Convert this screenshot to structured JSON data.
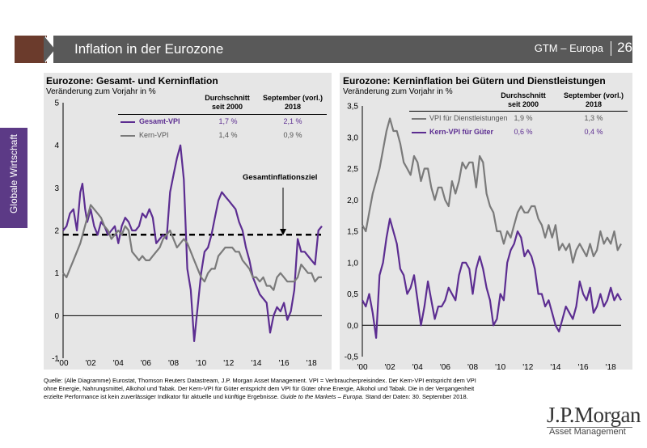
{
  "header": {
    "title": "Inflation in der Eurozone",
    "series": "GTM – Europa",
    "page": "26"
  },
  "sidebar": {
    "label": "Globale Wirtschaft"
  },
  "left_panel": {
    "title": "Eurozone: Gesamt- und Kerninflation",
    "subtitle": "Veränderung zum Vorjahr in %",
    "col_avg": [
      "Durchschnitt",
      "seit 2000"
    ],
    "col_sep": [
      "September (vorl.)",
      "2018"
    ],
    "rows": [
      {
        "label": "Gesamt-VPI",
        "avg": "1,7 %",
        "sep": "2,1 %"
      },
      {
        "label": "Kern-VPI",
        "avg": "1,4 %",
        "sep": "0,9 %"
      }
    ],
    "annotation": "Gesamtinflationsziel"
  },
  "right_panel": {
    "title": "Eurozone: Kerninflation bei Gütern und Dienstleistungen",
    "subtitle": "Veränderung zum Vorjahr in %",
    "col_avg": [
      "Durchschnitt",
      "seit 2000"
    ],
    "col_sep": [
      "September (vorl.)",
      "2018"
    ],
    "rows": [
      {
        "label": "VPI für Dienstleistungen",
        "avg": "1,9 %",
        "sep": "1,3 %"
      },
      {
        "label": "Kern-VPI für Güter",
        "avg": "0,6 %",
        "sep": "0,4 %"
      }
    ]
  },
  "source": {
    "line1": "Quelle: (Alle Diagramme) Eurostat, Thomson Reuters Datastream, J.P. Morgan Asset Management. VPI = Verbraucherpreisindex. Der Kern-VPI entspricht dem VPI",
    "line2": "ohne Energie, Nahrungsmittel, Alkohol und Tabak. Der Kern-VPI für Güter entspricht dem VPI für Güter ohne Energie, Alkohol und Tabak. Die in der Vergangenheit",
    "line3_a": "erzielte Performance ist kein zuverlässiger Indikator für aktuelle und künftige Ergebnisse.",
    "line3_b": "Guide to the Markets – Europa.",
    "line3_c": "Stand der Daten: 30. September 2018."
  },
  "logo": {
    "line1": "J.P.Morgan",
    "line2": "Asset Management"
  },
  "colors": {
    "purple": "#5c2d91",
    "grey": "#7a7a7a",
    "header": "#595959",
    "accent": "#6b3b2c"
  },
  "chart_data": [
    {
      "type": "line",
      "title": "Eurozone: Gesamt- und Kerninflation",
      "ylabel": "Veränderung zum Vorjahr in %",
      "ylim": [
        -1,
        5
      ],
      "xlim": [
        2000,
        2018.75
      ],
      "yticks": [
        "-1",
        "0",
        "1",
        "2",
        "3",
        "4",
        "5"
      ],
      "xticks": [
        "'00",
        "'02",
        "'04",
        "'06",
        "'08",
        "'10",
        "'12",
        "'14",
        "'16",
        "'18"
      ],
      "reference_line": {
        "y": 1.9,
        "label": "Gesamtinflationsziel"
      },
      "series": [
        {
          "name": "Gesamt-VPI",
          "color": "#5c2d91",
          "x": [
            2000,
            2000.25,
            2000.5,
            2000.75,
            2001,
            2001.25,
            2001.4,
            2001.6,
            2001.75,
            2002,
            2002.25,
            2002.5,
            2002.75,
            2003,
            2003.25,
            2003.5,
            2003.75,
            2004,
            2004.25,
            2004.5,
            2004.75,
            2005,
            2005.25,
            2005.5,
            2005.75,
            2006,
            2006.25,
            2006.5,
            2006.75,
            2007,
            2007.25,
            2007.5,
            2007.75,
            2008,
            2008.25,
            2008.5,
            2008.75,
            2009,
            2009.25,
            2009.5,
            2009.75,
            2010,
            2010.25,
            2010.5,
            2010.75,
            2011,
            2011.25,
            2011.5,
            2011.75,
            2012,
            2012.25,
            2012.5,
            2012.75,
            2013,
            2013.25,
            2013.5,
            2013.75,
            2014,
            2014.25,
            2014.5,
            2014.75,
            2015,
            2015.25,
            2015.5,
            2015.75,
            2016,
            2016.25,
            2016.5,
            2016.75,
            2017,
            2017.25,
            2017.5,
            2017.75,
            2018,
            2018.25,
            2018.5,
            2018.75
          ],
          "y": [
            2.0,
            2.1,
            2.4,
            2.5,
            2.0,
            2.9,
            3.1,
            2.5,
            2.2,
            2.5,
            2.1,
            1.9,
            2.2,
            2.1,
            1.9,
            2.0,
            2.1,
            1.7,
            2.1,
            2.3,
            2.2,
            2.0,
            2.0,
            2.1,
            2.4,
            2.3,
            2.5,
            2.3,
            1.7,
            1.8,
            1.9,
            1.8,
            2.9,
            3.3,
            3.7,
            4.0,
            3.2,
            1.1,
            0.6,
            -0.6,
            0.2,
            1.0,
            1.5,
            1.6,
            1.9,
            2.3,
            2.7,
            2.9,
            2.8,
            2.7,
            2.6,
            2.5,
            2.2,
            2.0,
            1.6,
            1.3,
            0.9,
            0.7,
            0.5,
            0.4,
            0.3,
            -0.4,
            0.0,
            0.2,
            0.1,
            0.3,
            -0.1,
            0.1,
            0.6,
            1.8,
            1.5,
            1.5,
            1.4,
            1.3,
            1.2,
            2.0,
            2.1
          ]
        },
        {
          "name": "Kern-VPI",
          "color": "#7a7a7a",
          "x": [
            2000,
            2000.25,
            2000.5,
            2000.75,
            2001,
            2001.25,
            2001.5,
            2001.75,
            2002,
            2002.25,
            2002.5,
            2002.75,
            2003,
            2003.25,
            2003.5,
            2003.75,
            2004,
            2004.25,
            2004.5,
            2004.75,
            2005,
            2005.25,
            2005.5,
            2005.75,
            2006,
            2006.25,
            2006.5,
            2006.75,
            2007,
            2007.25,
            2007.5,
            2007.75,
            2008,
            2008.25,
            2008.5,
            2008.75,
            2009,
            2009.25,
            2009.5,
            2009.75,
            2010,
            2010.25,
            2010.5,
            2010.75,
            2011,
            2011.25,
            2011.5,
            2011.75,
            2012,
            2012.25,
            2012.5,
            2012.75,
            2013,
            2013.25,
            2013.5,
            2013.75,
            2014,
            2014.25,
            2014.5,
            2014.75,
            2015,
            2015.25,
            2015.5,
            2015.75,
            2016,
            2016.25,
            2016.5,
            2016.75,
            2017,
            2017.25,
            2017.5,
            2017.75,
            2018,
            2018.25,
            2018.5,
            2018.75
          ],
          "y": [
            1.0,
            0.9,
            1.1,
            1.3,
            1.5,
            1.7,
            2.0,
            2.3,
            2.6,
            2.5,
            2.4,
            2.3,
            2.1,
            2.0,
            1.8,
            1.9,
            2.0,
            1.9,
            2.1,
            2.0,
            1.5,
            1.4,
            1.3,
            1.4,
            1.3,
            1.3,
            1.4,
            1.5,
            1.6,
            1.8,
            1.9,
            2.0,
            1.8,
            1.6,
            1.7,
            1.8,
            1.7,
            1.5,
            1.3,
            1.1,
            0.9,
            0.8,
            1.0,
            1.1,
            1.1,
            1.4,
            1.5,
            1.6,
            1.6,
            1.6,
            1.5,
            1.5,
            1.3,
            1.2,
            1.1,
            0.9,
            0.9,
            0.8,
            0.9,
            0.7,
            0.7,
            0.6,
            0.9,
            1.0,
            0.9,
            0.8,
            0.8,
            0.8,
            0.9,
            1.2,
            1.1,
            1.0,
            1.0,
            0.8,
            0.9,
            0.9
          ]
        }
      ]
    },
    {
      "type": "line",
      "title": "Eurozone: Kerninflation bei Gütern und Dienstleistungen",
      "ylabel": "Veränderung zum Vorjahr in %",
      "ylim": [
        -0.5,
        3.5
      ],
      "xlim": [
        2000,
        2018.75
      ],
      "yticks": [
        "-0,5",
        "0,0",
        "0,5",
        "1,0",
        "1,5",
        "2,0",
        "2,5",
        "3,0",
        "3,5"
      ],
      "xticks": [
        "'00",
        "'02",
        "'04",
        "'06",
        "'08",
        "'10",
        "'12",
        "'14",
        "'16",
        "'18"
      ],
      "series": [
        {
          "name": "VPI für Dienstleistungen",
          "color": "#7a7a7a",
          "x": [
            2000,
            2000.25,
            2000.5,
            2000.75,
            2001,
            2001.25,
            2001.5,
            2001.75,
            2002,
            2002.25,
            2002.5,
            2002.75,
            2003,
            2003.25,
            2003.5,
            2003.75,
            2004,
            2004.25,
            2004.5,
            2004.75,
            2005,
            2005.25,
            2005.5,
            2005.75,
            2006,
            2006.25,
            2006.5,
            2006.75,
            2007,
            2007.25,
            2007.5,
            2007.75,
            2008,
            2008.25,
            2008.5,
            2008.75,
            2009,
            2009.25,
            2009.5,
            2009.75,
            2010,
            2010.25,
            2010.5,
            2010.75,
            2011,
            2011.25,
            2011.5,
            2011.75,
            2012,
            2012.25,
            2012.5,
            2012.75,
            2013,
            2013.25,
            2013.5,
            2013.75,
            2014,
            2014.25,
            2014.5,
            2014.75,
            2015,
            2015.25,
            2015.5,
            2015.75,
            2016,
            2016.25,
            2016.5,
            2016.75,
            2017,
            2017.25,
            2017.5,
            2017.75,
            2018,
            2018.25,
            2018.5,
            2018.75
          ],
          "y": [
            1.6,
            1.5,
            1.8,
            2.1,
            2.3,
            2.5,
            2.8,
            3.1,
            3.3,
            3.1,
            3.1,
            2.9,
            2.6,
            2.5,
            2.4,
            2.7,
            2.6,
            2.3,
            2.5,
            2.5,
            2.2,
            2.0,
            2.2,
            2.2,
            2.0,
            1.9,
            2.3,
            2.1,
            2.3,
            2.6,
            2.5,
            2.6,
            2.6,
            2.2,
            2.7,
            2.6,
            2.1,
            1.9,
            1.8,
            1.5,
            1.5,
            1.3,
            1.5,
            1.4,
            1.6,
            1.8,
            1.9,
            1.8,
            1.8,
            1.9,
            1.9,
            1.7,
            1.6,
            1.4,
            1.6,
            1.4,
            1.6,
            1.2,
            1.3,
            1.2,
            1.3,
            1.0,
            1.2,
            1.3,
            1.2,
            1.1,
            1.3,
            1.1,
            1.2,
            1.5,
            1.3,
            1.4,
            1.3,
            1.5,
            1.2,
            1.3
          ]
        },
        {
          "name": "Kern-VPI für Güter",
          "color": "#5c2d91",
          "x": [
            2000,
            2000.25,
            2000.5,
            2000.75,
            2001,
            2001.25,
            2001.5,
            2001.75,
            2002,
            2002.25,
            2002.5,
            2002.75,
            2003,
            2003.25,
            2003.5,
            2003.75,
            2004,
            2004.25,
            2004.5,
            2004.75,
            2005,
            2005.25,
            2005.5,
            2005.75,
            2006,
            2006.25,
            2006.5,
            2006.75,
            2007,
            2007.25,
            2007.5,
            2007.75,
            2008,
            2008.25,
            2008.5,
            2008.75,
            2009,
            2009.25,
            2009.5,
            2009.75,
            2010,
            2010.25,
            2010.5,
            2010.75,
            2011,
            2011.25,
            2011.5,
            2011.75,
            2012,
            2012.25,
            2012.5,
            2012.75,
            2013,
            2013.25,
            2013.5,
            2013.75,
            2014,
            2014.25,
            2014.5,
            2014.75,
            2015,
            2015.25,
            2015.5,
            2015.75,
            2016,
            2016.25,
            2016.5,
            2016.75,
            2017,
            2017.25,
            2017.5,
            2017.75,
            2018,
            2018.25,
            2018.5,
            2018.75
          ],
          "y": [
            0.4,
            0.3,
            0.5,
            0.2,
            -0.2,
            0.8,
            1.0,
            1.4,
            1.7,
            1.5,
            1.3,
            0.9,
            0.8,
            0.5,
            0.6,
            0.8,
            0.4,
            0.0,
            0.3,
            0.7,
            0.4,
            0.1,
            0.3,
            0.3,
            0.4,
            0.6,
            0.5,
            0.4,
            0.8,
            1.0,
            1.0,
            0.9,
            0.5,
            0.9,
            1.1,
            0.9,
            0.6,
            0.4,
            0.0,
            0.1,
            0.5,
            0.4,
            1.0,
            1.2,
            1.3,
            1.5,
            1.4,
            1.1,
            1.2,
            1.1,
            0.9,
            0.5,
            0.5,
            0.3,
            0.4,
            0.2,
            0.0,
            -0.1,
            0.1,
            0.3,
            0.2,
            0.1,
            0.3,
            0.7,
            0.5,
            0.4,
            0.6,
            0.2,
            0.3,
            0.5,
            0.3,
            0.4,
            0.6,
            0.4,
            0.5,
            0.4
          ]
        }
      ]
    }
  ]
}
